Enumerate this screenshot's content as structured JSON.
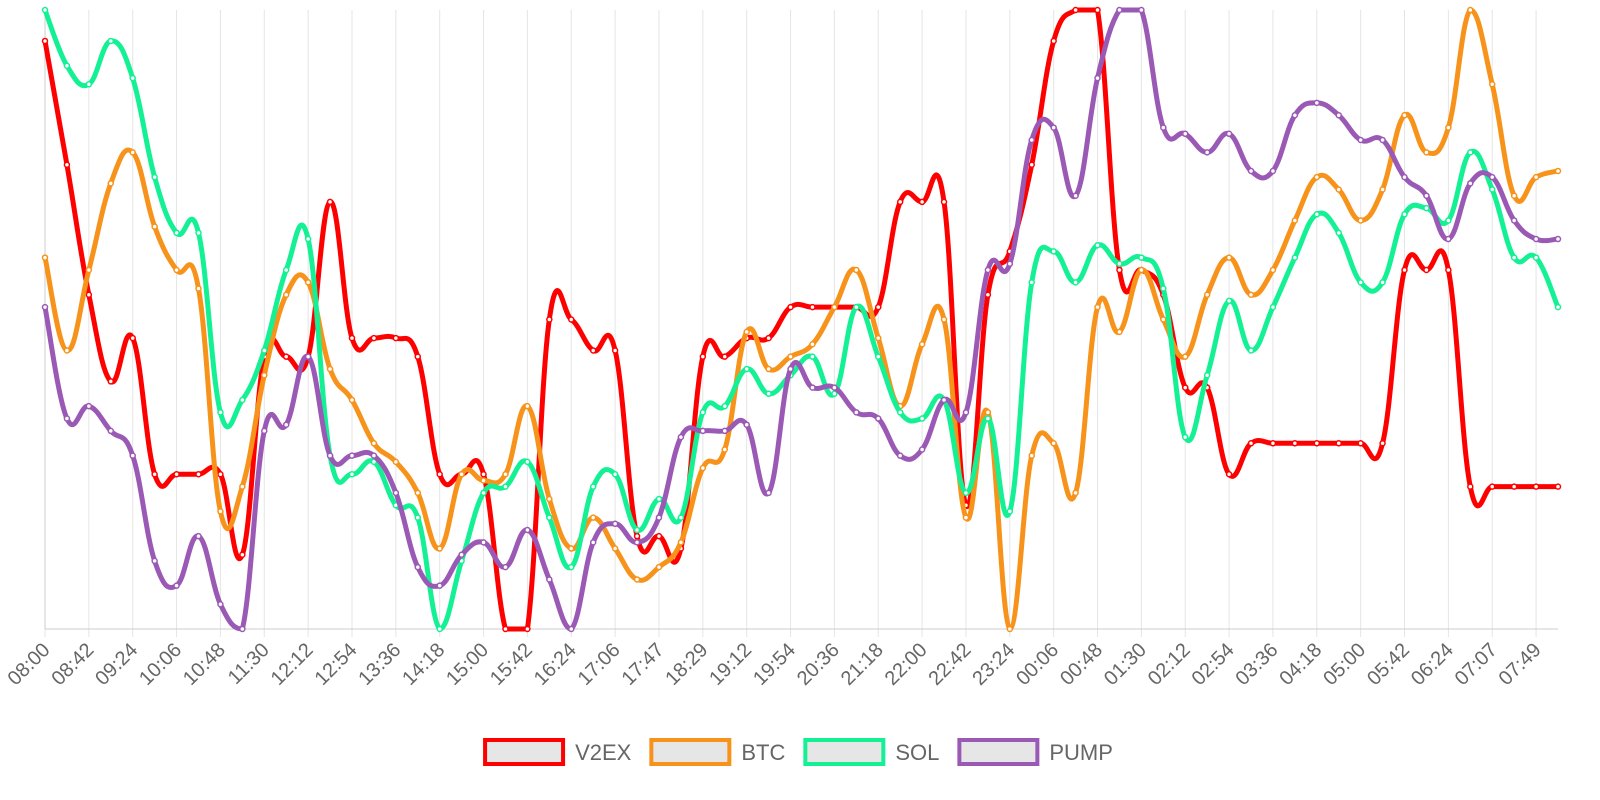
{
  "chart_data": {
    "type": "line",
    "categories": [
      "08:00",
      null,
      "08:42",
      null,
      "09:24",
      null,
      "10:06",
      null,
      "10:48",
      null,
      "11:30",
      null,
      "12:12",
      null,
      "12:54",
      null,
      "13:36",
      null,
      "14:18",
      null,
      "15:00",
      null,
      "15:42",
      null,
      "16:24",
      null,
      "17:06",
      null,
      "17:47",
      null,
      "18:29",
      null,
      "19:12",
      null,
      "19:54",
      null,
      "20:36",
      null,
      "21:18",
      null,
      "22:00",
      null,
      "22:42",
      null,
      "23:24",
      null,
      "00:06",
      null,
      "00:48",
      null,
      "01:30",
      null,
      "02:12",
      null,
      "02:54",
      null,
      "03:36",
      null,
      "04:18",
      null,
      "05:00",
      null,
      "05:42",
      null,
      "06:24",
      null,
      "07:07",
      null,
      "07:49",
      null
    ],
    "series": [
      {
        "name": "V2EX",
        "color": "#ff0000",
        "values": [
          95,
          75,
          54,
          40,
          47,
          25,
          25,
          25,
          25,
          12,
          44,
          44,
          44,
          69,
          47,
          47,
          47,
          44,
          25,
          25,
          25,
          0,
          0,
          50,
          50,
          45,
          45,
          15,
          15,
          13,
          44,
          44,
          47,
          47,
          52,
          52,
          52,
          52,
          52,
          69,
          69,
          69,
          20,
          54,
          61,
          75,
          95,
          100,
          100,
          58,
          58,
          54,
          39,
          39,
          25,
          30,
          30,
          30,
          30,
          30,
          30,
          30,
          58,
          58,
          58,
          23,
          23,
          23,
          23,
          23
        ]
      },
      {
        "name": "BTC",
        "color": "#f7931a",
        "values": [
          60,
          45,
          58,
          72,
          77,
          65,
          58,
          55,
          19,
          23,
          41,
          54,
          56,
          42,
          37,
          30,
          27,
          22,
          13,
          25,
          24,
          25,
          36,
          21,
          13,
          18,
          13,
          8,
          10,
          14,
          26,
          29,
          48,
          42,
          44,
          46,
          52,
          58,
          47,
          36,
          46,
          50,
          18,
          35,
          0,
          28,
          30,
          22,
          52,
          48,
          58,
          50,
          44,
          54,
          60,
          54,
          58,
          66,
          73,
          71,
          66,
          71,
          83,
          77,
          81,
          100,
          88,
          70,
          73,
          74
        ]
      },
      {
        "name": "SOL",
        "color": "#14f195",
        "values": [
          100,
          91,
          88,
          95,
          89,
          73,
          64,
          64,
          35,
          37,
          45,
          58,
          63,
          28,
          25,
          27,
          20,
          18,
          0,
          11,
          22,
          23,
          27,
          18,
          10,
          23,
          25,
          16,
          21,
          18,
          35,
          36,
          42,
          38,
          41,
          44,
          38,
          52,
          44,
          35,
          34,
          37,
          22,
          34,
          19,
          56,
          61,
          56,
          62,
          59,
          60,
          55,
          31,
          41,
          53,
          45,
          52,
          60,
          67,
          64,
          56,
          56,
          67,
          68,
          66,
          77,
          71,
          60,
          60,
          52
        ]
      },
      {
        "name": "PUMP",
        "color": "#9b59b6",
        "values": [
          52,
          34,
          36,
          32,
          28,
          11,
          7,
          15,
          4,
          0,
          32,
          33,
          44,
          28,
          28,
          28,
          22,
          10,
          7,
          12,
          14,
          10,
          16,
          8,
          0,
          14,
          17,
          14,
          18,
          31,
          32,
          32,
          33,
          22,
          42,
          39,
          39,
          35,
          34,
          28,
          29,
          37,
          35,
          58,
          59,
          79,
          81,
          70,
          89,
          100,
          100,
          81,
          80,
          77,
          80,
          74,
          74,
          83,
          85,
          83,
          79,
          79,
          73,
          70,
          63,
          72,
          73,
          66,
          63,
          63
        ]
      }
    ],
    "ylim": [
      0,
      100
    ],
    "grid": true,
    "legend": "bottom"
  }
}
